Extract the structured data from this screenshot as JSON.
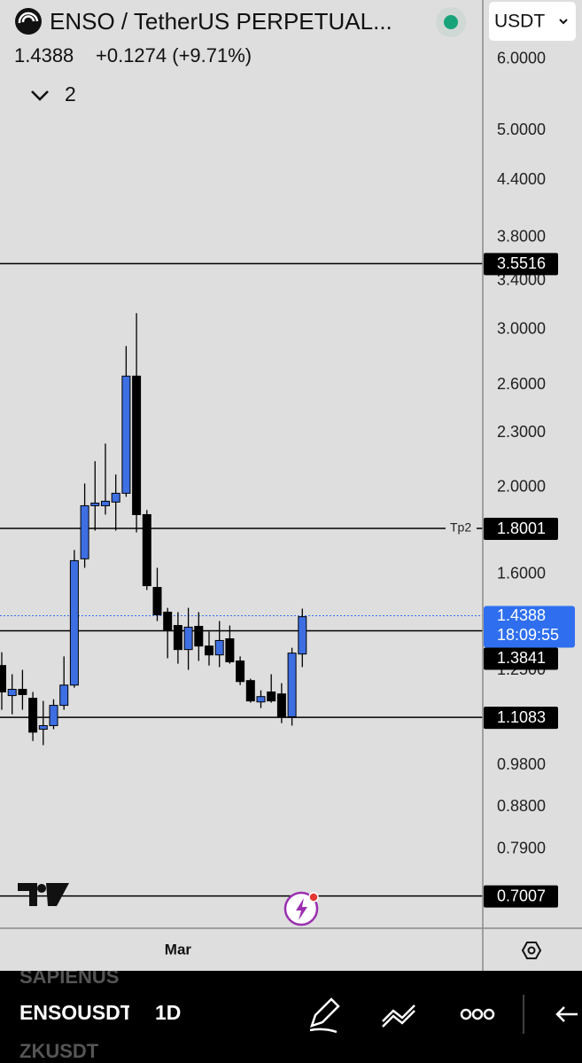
{
  "header": {
    "title": "ENSO / TetherUS PERPETUAL...",
    "price": "1.4388",
    "change": "+0.1274 (+9.71%)",
    "indicators": "2",
    "currency": "USDT"
  },
  "chart_data": {
    "type": "candlestick",
    "log": true,
    "grid": false,
    "up_color": "#3d6fe3",
    "down_color": "#000000",
    "categories": [
      null,
      null,
      null,
      null,
      null,
      null,
      null,
      null,
      null,
      null,
      null,
      null,
      null,
      null,
      null,
      null,
      null,
      "Mar",
      null,
      null,
      null,
      null,
      null,
      null,
      null,
      null,
      null,
      null,
      null,
      null
    ],
    "open": [
      1.266,
      1.172,
      1.191,
      1.164,
      1.075,
      1.085,
      1.143,
      1.204,
      1.665,
      1.908,
      1.908,
      1.926,
      1.97,
      2.661,
      1.865,
      1.547,
      1.452,
      1.403,
      1.319,
      1.4,
      1.331,
      1.301,
      1.356,
      1.281,
      1.218,
      1.153,
      1.183,
      1.177,
      1.11,
      1.304
    ],
    "high": [
      1.31,
      1.238,
      1.252,
      1.183,
      1.156,
      1.161,
      1.296,
      1.703,
      2.02,
      2.139,
      2.238,
      2.067,
      2.875,
      3.128,
      1.887,
      1.627,
      1.468,
      1.452,
      1.468,
      1.452,
      1.381,
      1.419,
      1.403,
      1.296,
      1.224,
      1.188,
      1.238,
      1.21,
      1.325,
      1.465
    ],
    "low": [
      1.13,
      1.117,
      1.13,
      1.043,
      1.032,
      1.075,
      1.13,
      1.196,
      1.627,
      1.79,
      1.865,
      1.79,
      1.952,
      1.782,
      1.537,
      1.419,
      1.29,
      1.272,
      1.252,
      1.281,
      1.266,
      1.261,
      1.272,
      1.204,
      1.151,
      1.135,
      1.151,
      1.092,
      1.085,
      1.261
    ],
    "close": [
      1.183,
      1.191,
      1.175,
      1.067,
      1.085,
      1.143,
      1.204,
      1.657,
      1.908,
      1.921,
      1.93,
      1.97,
      2.661,
      1.865,
      1.554,
      1.442,
      1.387,
      1.319,
      1.397,
      1.331,
      1.301,
      1.35,
      1.278,
      1.215,
      1.156,
      1.169,
      1.156,
      1.11,
      1.307,
      1.435
    ],
    "ylim": [
      0.645,
      6.38
    ],
    "yticks": [
      {
        "value": 6,
        "label": "6.0000"
      },
      {
        "value": 5,
        "label": "5.0000"
      },
      {
        "value": 4.4,
        "label": "4.4000"
      },
      {
        "value": 3.8,
        "label": "3.8000"
      },
      {
        "value": 3.4,
        "label": "3.4000"
      },
      {
        "value": 3,
        "label": "3.0000"
      },
      {
        "value": 2.6,
        "label": "2.6000"
      },
      {
        "value": 2.3,
        "label": "2.3000"
      },
      {
        "value": 2,
        "label": "2.0000"
      },
      {
        "value": 1.6,
        "label": "1.6000"
      },
      {
        "value": 1.25,
        "label": "1.2500"
      },
      {
        "value": 0.98,
        "label": "0.9800"
      },
      {
        "value": 0.88,
        "label": "0.8800"
      },
      {
        "value": 0.79,
        "label": "0.7900"
      }
    ],
    "hlines": [
      {
        "value": 3.5516
      },
      {
        "value": 1.8001,
        "label": "Tp2"
      },
      {
        "value": 1.3841
      },
      {
        "value": 1.1083
      },
      {
        "value": 0.7007
      }
    ],
    "last_price": {
      "value": 1.4388,
      "countdown": "18:09:55",
      "color": "#2f6fef"
    }
  },
  "bottom_bar": {
    "prev_symbol": "SAPIENUS",
    "symbol": "ENSOUSDT",
    "interval": "1D",
    "next_symbol": "ZKUSDT"
  }
}
